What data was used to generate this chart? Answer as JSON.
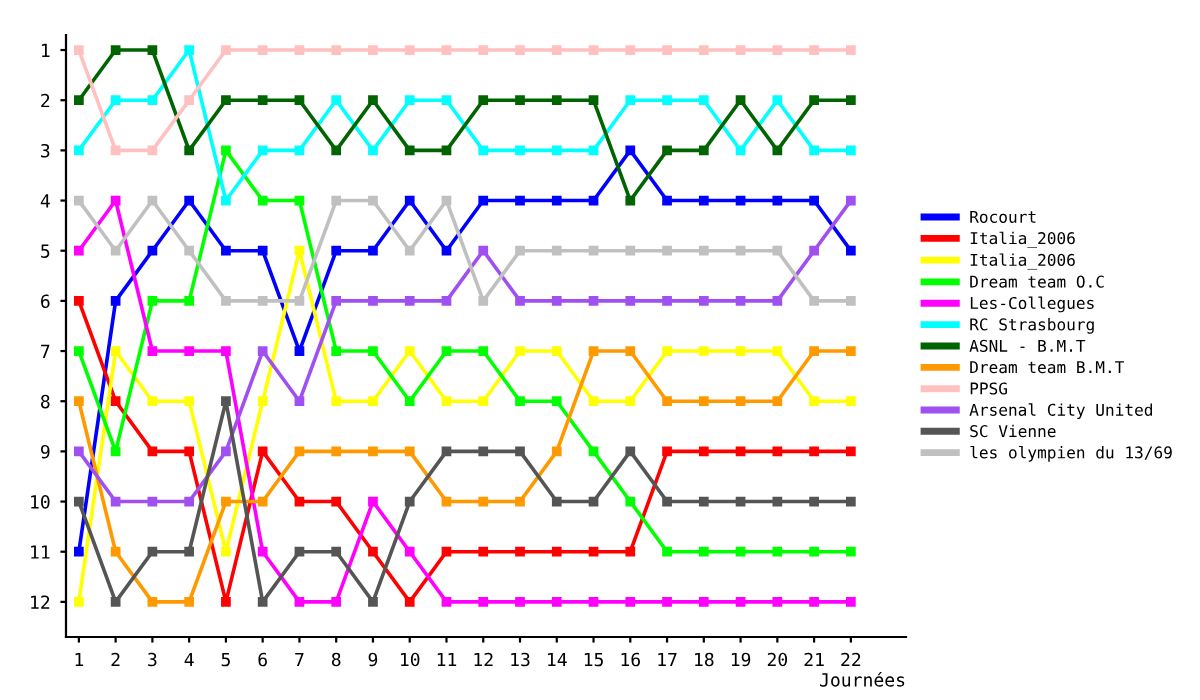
{
  "chart_data": {
    "type": "line",
    "xlabel": "Journées",
    "x": [
      1,
      2,
      3,
      4,
      5,
      6,
      7,
      8,
      9,
      10,
      11,
      12,
      13,
      14,
      15,
      16,
      17,
      18,
      19,
      20,
      21,
      22
    ],
    "xlim": [
      0.65,
      23.5
    ],
    "xticks": [
      1,
      2,
      3,
      4,
      5,
      6,
      7,
      8,
      9,
      10,
      11,
      12,
      13,
      14,
      15,
      16,
      17,
      18,
      19,
      20,
      21,
      22
    ],
    "ylim": [
      12.7,
      0.7
    ],
    "yticks": [
      1,
      2,
      3,
      4,
      5,
      6,
      7,
      8,
      9,
      10,
      11,
      12
    ],
    "grid": false,
    "legend": "right",
    "marker": "square",
    "line_style": "solid",
    "series": [
      {
        "name": "Rocourt",
        "color": "#0000ff",
        "values": [
          11,
          6,
          5,
          4,
          5,
          5,
          7,
          5,
          5,
          4,
          5,
          4,
          4,
          4,
          4,
          3,
          4,
          4,
          4,
          4,
          4,
          5
        ]
      },
      {
        "name": "Italia_2006",
        "color": "#ff0000",
        "values": [
          6,
          8,
          9,
          9,
          12,
          9,
          10,
          10,
          11,
          12,
          11,
          11,
          11,
          11,
          11,
          11,
          9,
          9,
          9,
          9,
          9,
          9
        ]
      },
      {
        "name": "Italia_2006",
        "color": "#ffff00",
        "values": [
          12,
          7,
          8,
          8,
          11,
          8,
          5,
          8,
          8,
          7,
          8,
          8,
          7,
          7,
          8,
          8,
          7,
          7,
          7,
          7,
          8,
          8
        ]
      },
      {
        "name": "Dream team O.C",
        "color": "#00ff00",
        "values": [
          7,
          9,
          6,
          6,
          3,
          4,
          4,
          7,
          7,
          8,
          7,
          7,
          8,
          8,
          9,
          10,
          11,
          11,
          11,
          11,
          11,
          11
        ]
      },
      {
        "name": "Les-Collegues",
        "color": "#ff00ff",
        "values": [
          5,
          4,
          7,
          7,
          7,
          11,
          12,
          12,
          10,
          11,
          12,
          12,
          12,
          12,
          12,
          12,
          12,
          12,
          12,
          12,
          12,
          12
        ]
      },
      {
        "name": "RC Strasbourg",
        "color": "#00ffff",
        "values": [
          3,
          2,
          2,
          1,
          4,
          3,
          3,
          2,
          3,
          2,
          2,
          3,
          3,
          3,
          3,
          2,
          2,
          2,
          3,
          2,
          3,
          3
        ]
      },
      {
        "name": "ASNL - B.M.T",
        "color": "#006400",
        "values": [
          2,
          1,
          1,
          3,
          2,
          2,
          2,
          3,
          2,
          3,
          3,
          2,
          2,
          2,
          2,
          4,
          3,
          3,
          2,
          3,
          2,
          2
        ]
      },
      {
        "name": "Dream team B.M.T",
        "color": "#ff9900",
        "values": [
          8,
          11,
          12,
          12,
          10,
          10,
          9,
          9,
          9,
          9,
          10,
          10,
          10,
          9,
          7,
          7,
          8,
          8,
          8,
          8,
          7,
          7
        ]
      },
      {
        "name": "PPSG",
        "color": "#ffc0c0",
        "values": [
          1,
          3,
          3,
          2,
          1,
          1,
          1,
          1,
          1,
          1,
          1,
          1,
          1,
          1,
          1,
          1,
          1,
          1,
          1,
          1,
          1,
          1
        ]
      },
      {
        "name": "Arsenal City United",
        "color": "#a050f0",
        "values": [
          9,
          10,
          10,
          10,
          9,
          7,
          8,
          6,
          6,
          6,
          6,
          5,
          6,
          6,
          6,
          6,
          6,
          6,
          6,
          6,
          5,
          4
        ]
      },
      {
        "name": "SC Vienne",
        "color": "#555555",
        "values": [
          10,
          12,
          11,
          11,
          8,
          12,
          11,
          11,
          12,
          10,
          9,
          9,
          9,
          10,
          10,
          9,
          10,
          10,
          10,
          10,
          10,
          10
        ]
      },
      {
        "name": "les olympien du 13/69",
        "color": "#c0c0c0",
        "values": [
          4,
          5,
          4,
          5,
          6,
          6,
          6,
          4,
          4,
          5,
          4,
          6,
          5,
          5,
          5,
          5,
          5,
          5,
          5,
          5,
          6,
          6
        ]
      }
    ]
  }
}
